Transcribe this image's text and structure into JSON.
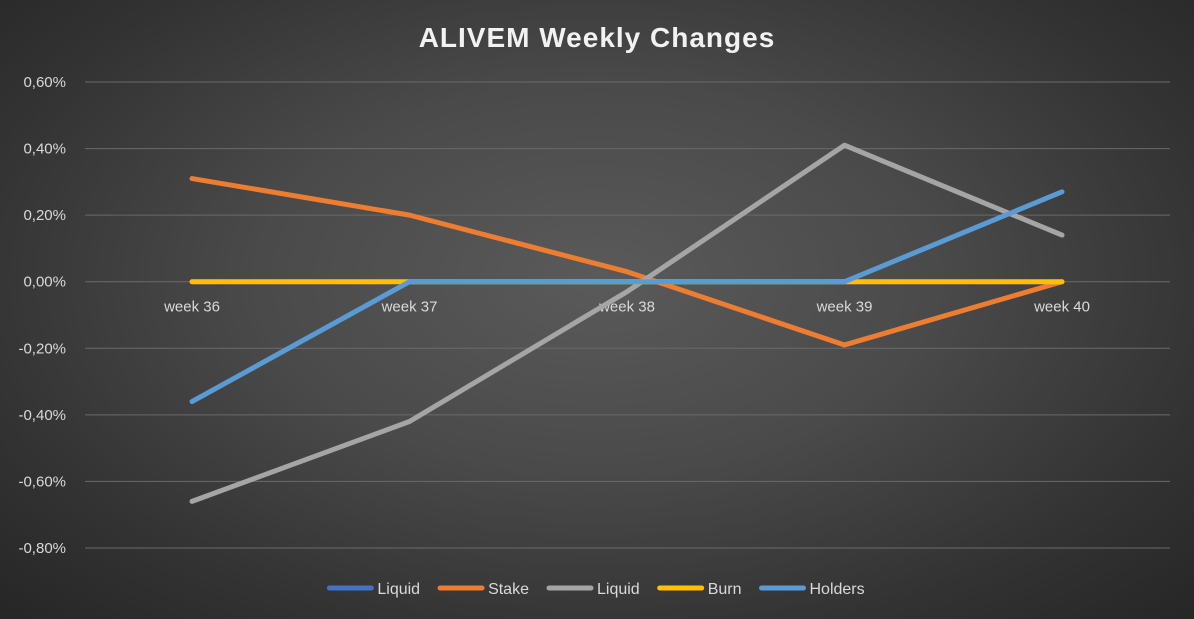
{
  "chart_data": {
    "type": "line",
    "title": "ALIVEM Weekly Changes",
    "categories": [
      "week 36",
      "week 37",
      "week 38",
      "week 39",
      "week 40"
    ],
    "ylim": [
      -0.8,
      0.6
    ],
    "y_ticks": [
      0.6,
      0.4,
      0.2,
      0.0,
      -0.2,
      -0.4,
      -0.6,
      -0.8
    ],
    "y_tick_labels": [
      "0,60%",
      "0,40%",
      "0,20%",
      "0,00%",
      "-0,20%",
      "-0,40%",
      "-0,60%",
      "-0,80%"
    ],
    "grid": true,
    "legend_position": "bottom",
    "series": [
      {
        "name": "Liquid",
        "color": "#4472c4",
        "values": [
          0,
          0,
          0,
          0,
          0
        ]
      },
      {
        "name": "Stake",
        "color": "#ed7d31",
        "values": [
          0.31,
          0.2,
          0.03,
          -0.19,
          0
        ]
      },
      {
        "name": "Liquid",
        "color": "#a5a5a5",
        "values": [
          -0.66,
          -0.42,
          -0.03,
          0.41,
          0.14
        ]
      },
      {
        "name": "Burn",
        "color": "#ffc000",
        "values": [
          0,
          0,
          0,
          0,
          0
        ]
      },
      {
        "name": "Holders",
        "color": "#5b9bd5",
        "values": [
          -0.36,
          0,
          0,
          0,
          0.27
        ]
      }
    ]
  }
}
